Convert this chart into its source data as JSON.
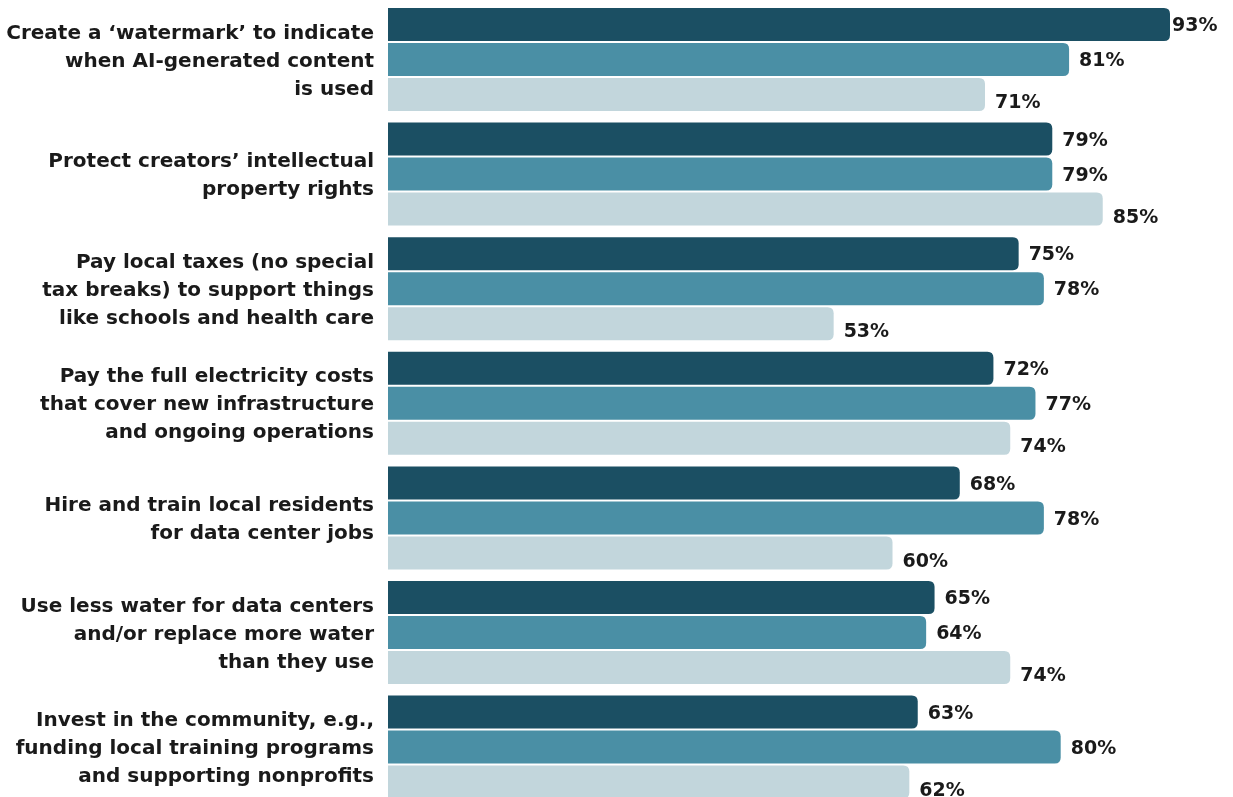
{
  "chart_data": {
    "type": "bar",
    "orientation": "horizontal",
    "categories": [
      "Create a ‘watermark’ to indicate\nwhen AI-generated content\nis used",
      "Protect creators’ intellectual\nproperty rights",
      "Pay local taxes (no special\ntax breaks) to support things\nlike schools and health care",
      "Pay the full electricity costs\nthat cover new infrastructure\nand ongoing operations",
      "Hire and train local residents\nfor data center jobs",
      "Use less water for data centers\nand/or replace more water\nthan they use",
      "Invest in the community, e.g.,\nfunding local training programs\nand supporting nonprofits"
    ],
    "series": [
      {
        "color": "#1b4f63",
        "values": [
          93,
          79,
          75,
          72,
          68,
          65,
          63
        ],
        "value_labels": [
          "93%",
          "79%",
          "75%",
          "72%",
          "68%",
          "65%",
          "63%"
        ]
      },
      {
        "color": "#4a8fa5",
        "values": [
          81,
          79,
          78,
          77,
          78,
          64,
          80
        ],
        "value_labels": [
          "81%",
          "79%",
          "78%",
          "77%",
          "78%",
          "64%",
          "80%"
        ]
      },
      {
        "color": "#c2d6dc",
        "values": [
          71,
          85,
          53,
          74,
          60,
          74,
          62
        ],
        "value_labels": [
          "71%",
          "85%",
          "53%",
          "74%",
          "60%",
          "74%",
          "62%"
        ]
      }
    ]
  }
}
